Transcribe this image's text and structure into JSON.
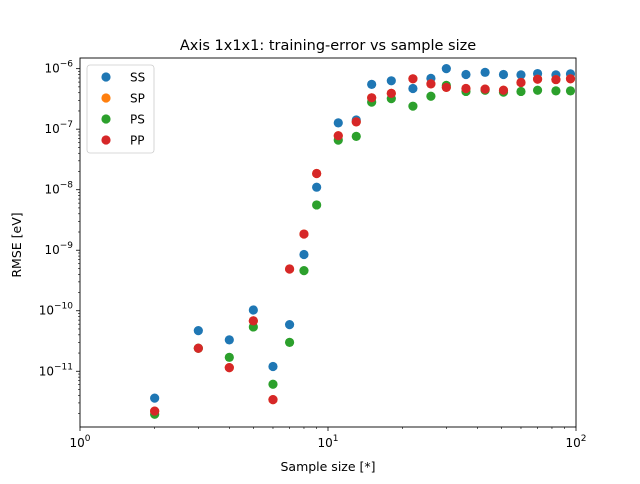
{
  "chart_data": {
    "type": "scatter",
    "title": "Axis 1x1x1: training-error vs sample size",
    "xlabel": "Sample size [*]",
    "ylabel": "RMSE [eV]",
    "xscale": "log",
    "yscale": "log",
    "xlim": [
      1,
      100
    ],
    "ylim": [
      1.2e-12,
      1.5e-06
    ],
    "grid": false,
    "legend_position": "top-left",
    "x_ticks": [
      {
        "value": 1,
        "label": "10",
        "exp": "0"
      },
      {
        "value": 10,
        "label": "10",
        "exp": "1"
      },
      {
        "value": 100,
        "label": "10",
        "exp": "2"
      }
    ],
    "y_ticks": [
      {
        "value": 1e-11,
        "label": "10",
        "exp": "−11"
      },
      {
        "value": 1e-10,
        "label": "10",
        "exp": "−10"
      },
      {
        "value": 1e-09,
        "label": "10",
        "exp": "−9"
      },
      {
        "value": 1e-08,
        "label": "10",
        "exp": "−8"
      },
      {
        "value": 1e-07,
        "label": "10",
        "exp": "−7"
      },
      {
        "value": 1e-06,
        "label": "10",
        "exp": "−6"
      }
    ],
    "series": [
      {
        "name": "SS",
        "color": "#1f77b4",
        "x": [
          2,
          3,
          4,
          5,
          6,
          7,
          8,
          9,
          11,
          13,
          15,
          18,
          22,
          26,
          30,
          36,
          43,
          51,
          60,
          70,
          83,
          95
        ],
        "y": [
          3.6e-12,
          4.7e-11,
          3.3e-11,
          1.03e-10,
          1.2e-11,
          5.9e-11,
          8.5e-10,
          1.1e-08,
          1.27e-07,
          1.42e-07,
          5.5e-07,
          6.3e-07,
          4.7e-07,
          6.9e-07,
          1e-06,
          8e-07,
          8.7e-07,
          8e-07,
          7.9e-07,
          8.3e-07,
          7.9e-07,
          8.2e-07
        ]
      },
      {
        "name": "SP",
        "color": "#ff7f0e",
        "x": [
          2,
          3,
          4,
          5,
          6,
          7,
          8,
          9,
          11,
          13,
          15,
          18,
          22,
          26,
          30,
          36,
          43,
          51,
          60,
          70,
          83,
          95
        ],
        "y": [
          2.2e-12,
          2.4e-11,
          1.15e-11,
          6.8e-11,
          3.4e-12,
          4.9e-10,
          1.85e-09,
          1.85e-08,
          7.8e-08,
          1.32e-07,
          3.3e-07,
          3.9e-07,
          6.8e-07,
          5.6e-07,
          4.9e-07,
          4.7e-07,
          4.6e-07,
          4.4e-07,
          5.9e-07,
          6.7e-07,
          6.6e-07,
          6.8e-07
        ]
      },
      {
        "name": "PS",
        "color": "#2ca02c",
        "x": [
          2,
          3,
          4,
          5,
          6,
          7,
          8,
          9,
          11,
          13,
          15,
          18,
          22,
          26,
          30,
          36,
          43,
          51,
          60,
          70,
          83,
          95
        ],
        "y": [
          1.95e-12,
          2.4e-11,
          1.7e-11,
          5.4e-11,
          6.1e-12,
          3e-11,
          4.6e-10,
          5.6e-09,
          6.6e-08,
          7.6e-08,
          2.8e-07,
          3.2e-07,
          2.4e-07,
          3.5e-07,
          5.3e-07,
          4.2e-07,
          4.4e-07,
          4.1e-07,
          4.2e-07,
          4.4e-07,
          4.3e-07,
          4.3e-07
        ]
      },
      {
        "name": "PP",
        "color": "#d62728",
        "x": [
          2,
          3,
          4,
          5,
          6,
          7,
          8,
          9,
          11,
          13,
          15,
          18,
          22,
          26,
          30,
          36,
          43,
          51,
          60,
          70,
          83,
          95
        ],
        "y": [
          2.2e-12,
          2.4e-11,
          1.15e-11,
          6.8e-11,
          3.4e-12,
          4.9e-10,
          1.85e-09,
          1.85e-08,
          7.8e-08,
          1.32e-07,
          3.3e-07,
          3.9e-07,
          6.8e-07,
          5.6e-07,
          4.9e-07,
          4.7e-07,
          4.6e-07,
          4.4e-07,
          5.9e-07,
          6.7e-07,
          6.6e-07,
          6.8e-07
        ]
      }
    ]
  }
}
